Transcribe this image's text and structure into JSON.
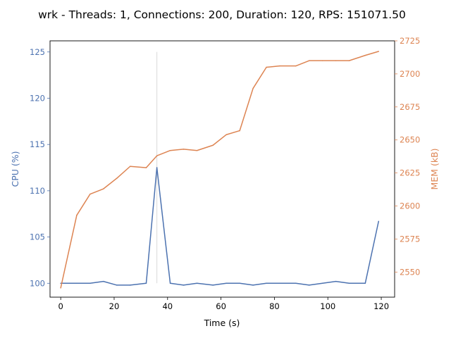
{
  "chart_data": {
    "type": "line",
    "title": "wrk - Threads: 1, Connections: 200, Duration: 120, RPS: 151071.50",
    "xlabel": "Time (s)",
    "ylabel_left": "CPU (%)",
    "ylabel_right": "MEM (kB)",
    "xlim": [
      -4,
      125
    ],
    "ylim_left": [
      98.5,
      126.2
    ],
    "ylim_right": [
      2531,
      2725
    ],
    "xticks": [
      0,
      20,
      40,
      60,
      80,
      100,
      120
    ],
    "yticks_left": [
      100,
      105,
      110,
      115,
      120,
      125
    ],
    "yticks_right": [
      2550,
      2575,
      2600,
      2625,
      2650,
      2675,
      2700,
      2725
    ],
    "grid": false,
    "legend": "none",
    "colors": {
      "cpu": "#4c72b0",
      "mem": "#dd8452",
      "marker": "#d9d9d9"
    },
    "vline": {
      "x": 36,
      "y_from": 100,
      "y_to": 125
    },
    "series": [
      {
        "axis": "left",
        "x": [
          0,
          6,
          11,
          16,
          21,
          26,
          32,
          36,
          41,
          46,
          51,
          57,
          62,
          67,
          72,
          77,
          82,
          88,
          93,
          98,
          103,
          108,
          114,
          119
        ],
        "values": [
          100,
          100,
          100,
          100.2,
          99.8,
          99.8,
          100,
          112.5,
          100,
          99.8,
          100,
          99.8,
          100,
          100,
          99.8,
          100,
          100,
          100,
          99.8,
          100,
          100.2,
          100,
          100,
          106.7
        ]
      },
      {
        "axis": "right",
        "x": [
          0,
          6,
          11,
          16,
          21,
          26,
          32,
          36,
          41,
          46,
          51,
          57,
          62,
          67,
          72,
          77,
          82,
          88,
          93,
          98,
          103,
          108,
          114,
          119
        ],
        "values": [
          2538,
          2593,
          2609,
          2613,
          2621,
          2630,
          2629,
          2638,
          2642,
          2643,
          2642,
          2646,
          2654,
          2657,
          2689,
          2705,
          2706,
          2706,
          2710,
          2710,
          2710,
          2710,
          2714,
          2717
        ]
      }
    ]
  }
}
